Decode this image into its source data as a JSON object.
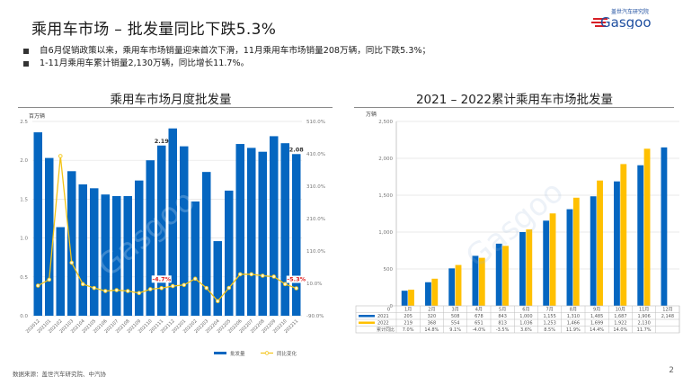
{
  "header": {
    "title": "乘用车市场 – 批发量同比下跌5.3%",
    "logo_cn": "盖世汽车研究院",
    "logo_en": "Gasgoo",
    "watermark": "Gasgoo 盖世汽车"
  },
  "bullets": [
    "自6月促销政策以来，乘用车市场销量迎来首次下滑，11月乘用车市场销量208万辆，同比下跌5.3%；",
    "1-11月乘用车累计销量2,130万辆，同比增长11.7%。"
  ],
  "footer": {
    "source": "数据来源：盖世汽车研究院、中汽协",
    "page": "2"
  },
  "colors": {
    "bar_blue": "#0566c0",
    "line_yellow": "#f3c316",
    "bar_2022": "#ffc000",
    "label_red": "#e02020"
  },
  "chart_data": [
    {
      "type": "bar",
      "title": "乘用车市场月度批发量",
      "ylabel": "百万辆",
      "ylim": [
        0,
        2.5
      ],
      "yticks": [
        "0.0",
        "0.5",
        "1.0",
        "1.5",
        "2.0",
        "2.5"
      ],
      "y2lim": [
        -90,
        510
      ],
      "y2ticks": [
        "-90.0%",
        "10.0%",
        "110.0%",
        "210.0%",
        "310.0%",
        "410.0%",
        "510.0%"
      ],
      "grid": true,
      "legend_position": "bottom-right",
      "categories": [
        "202012",
        "202101",
        "202102",
        "202103",
        "202104",
        "202105",
        "202106",
        "202107",
        "202108",
        "202109",
        "202110",
        "202111",
        "202112",
        "202201",
        "202202",
        "202203",
        "202204",
        "202205",
        "202206",
        "202207",
        "202208",
        "202209",
        "202210",
        "202211"
      ],
      "series": [
        {
          "name": "批发量",
          "type": "bar",
          "axis": "left",
          "values": [
            2.36,
            2.03,
            1.14,
            1.86,
            1.69,
            1.64,
            1.56,
            1.54,
            1.54,
            1.74,
            2.0,
            2.19,
            2.41,
            2.18,
            1.47,
            1.85,
            0.96,
            1.61,
            2.21,
            2.16,
            2.11,
            2.31,
            2.22,
            2.08
          ]
        },
        {
          "name": "同比变化",
          "type": "line",
          "axis": "right",
          "unit": "%",
          "values": [
            3,
            21.6,
            403,
            73.8,
            7.7,
            -4.4,
            -13.7,
            -11,
            -13.7,
            -20,
            -8,
            -4.7,
            1.5,
            5,
            24.4,
            -4.4,
            -45,
            -4,
            38,
            38,
            33.6,
            30.9,
            7.7,
            -5.3
          ]
        }
      ],
      "data_labels": [
        {
          "category": "202111",
          "series": "批发量",
          "text": "2.19"
        },
        {
          "category": "202211",
          "series": "批发量",
          "text": "2.08"
        },
        {
          "category": "202111",
          "series": "同比变化",
          "text": "-4.7%"
        },
        {
          "category": "202211",
          "series": "同比变化",
          "text": "-5.3%"
        }
      ]
    },
    {
      "type": "bar",
      "title": "2021 – 2022累计乘用车市场批发量",
      "ylabel": "万辆",
      "ylim": [
        0,
        2500
      ],
      "yticks": [
        "0",
        "500",
        "1,000",
        "1,500",
        "2,000",
        "2,500"
      ],
      "grid": true,
      "legend_position": "table-bottom",
      "categories": [
        "1月",
        "2月",
        "3月",
        "4月",
        "5月",
        "6月",
        "7月",
        "8月",
        "9月",
        "10月",
        "11月",
        "12月"
      ],
      "series": [
        {
          "name": "2021",
          "values": [
            205,
            320,
            508,
            678,
            843,
            1000,
            1155,
            1310,
            1485,
            1687,
            1906,
            2148
          ]
        },
        {
          "name": "2022",
          "values": [
            219,
            368,
            554,
            651,
            813,
            1036,
            1253,
            1466,
            1699,
            1922,
            2130,
            null
          ]
        }
      ],
      "table": {
        "rows": [
          {
            "label": "2021",
            "cells": [
              "205",
              "320",
              "508",
              "678",
              "843",
              "1,000",
              "1,155",
              "1,310",
              "1,485",
              "1,687",
              "1,906",
              "2,148"
            ]
          },
          {
            "label": "2022",
            "cells": [
              "219",
              "368",
              "554",
              "651",
              "813",
              "1,036",
              "1,253",
              "1,466",
              "1,699",
              "1,922",
              "2,130",
              ""
            ]
          },
          {
            "label": "累计同比",
            "cells": [
              "7.0%",
              "14.8%",
              "9.1%",
              "-4.0%",
              "-3.5%",
              "3.6%",
              "8.5%",
              "11.9%",
              "14.4%",
              "14.0%",
              "11.7%",
              ""
            ]
          }
        ]
      }
    }
  ]
}
